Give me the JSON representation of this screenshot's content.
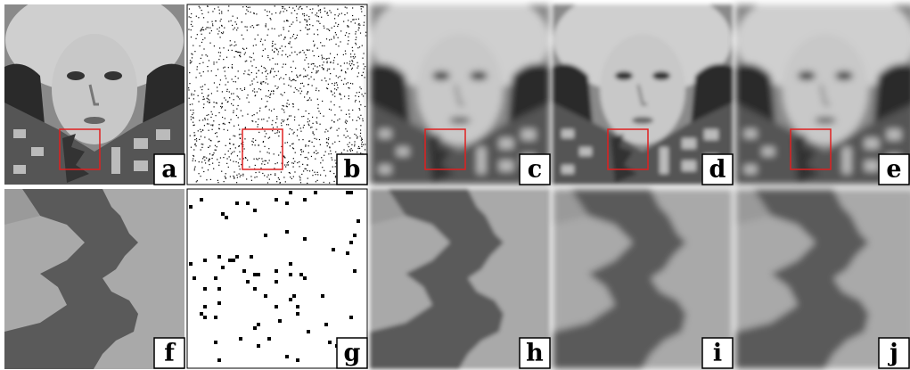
{
  "panels": [
    {
      "label": "a"
    },
    {
      "label": "b"
    },
    {
      "label": "c"
    },
    {
      "label": "d"
    },
    {
      "label": "e"
    },
    {
      "label": "f"
    },
    {
      "label": "g"
    },
    {
      "label": "h"
    },
    {
      "label": "i"
    },
    {
      "label": "j"
    }
  ]
}
